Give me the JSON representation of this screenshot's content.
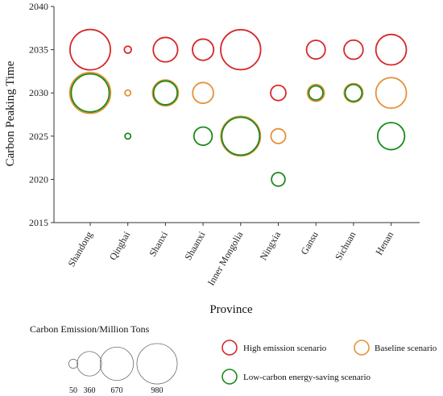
{
  "chart_data": {
    "type": "scatter",
    "subtype": "bubble",
    "ylabel": "Carbon Peaking Time",
    "xlabel": "Province",
    "ylim": [
      2015,
      2040
    ],
    "yticks": [
      2015,
      2020,
      2025,
      2030,
      2035,
      2040
    ],
    "categories": [
      "Shandong",
      "Qinghai",
      "Shanxi",
      "Shaanxi",
      "Inner Mongolia",
      "Ningxia",
      "Gansu",
      "Sichuan",
      "Henan"
    ],
    "series": [
      {
        "name": "High emission scenario",
        "color": "#d62728",
        "points": [
          {
            "category": "Shandong",
            "y": 2035,
            "size": 980
          },
          {
            "category": "Qinghai",
            "y": 2035,
            "size": 30
          },
          {
            "category": "Shanxi",
            "y": 2035,
            "size": 360
          },
          {
            "category": "Shaanxi",
            "y": 2035,
            "size": 270
          },
          {
            "category": "Inner Mongolia",
            "y": 2035,
            "size": 960
          },
          {
            "category": "Gansu",
            "y": 2035,
            "size": 210
          },
          {
            "category": "Sichuan",
            "y": 2035,
            "size": 220
          },
          {
            "category": "Henan",
            "y": 2035,
            "size": 560
          },
          {
            "category": "Ningxia",
            "y": 2030,
            "size": 140
          }
        ]
      },
      {
        "name": "Baseline scenario",
        "color": "#e69138",
        "points": [
          {
            "category": "Shandong",
            "y": 2030,
            "size": 1000
          },
          {
            "category": "Qinghai",
            "y": 2030,
            "size": 20
          },
          {
            "category": "Shanxi",
            "y": 2030,
            "size": 400
          },
          {
            "category": "Shaanxi",
            "y": 2030,
            "size": 260
          },
          {
            "category": "Inner Mongolia",
            "y": 2025,
            "size": 940
          },
          {
            "category": "Ningxia",
            "y": 2025,
            "size": 130
          },
          {
            "category": "Gansu",
            "y": 2030,
            "size": 170
          },
          {
            "category": "Sichuan",
            "y": 2030,
            "size": 210
          },
          {
            "category": "Henan",
            "y": 2030,
            "size": 560
          }
        ]
      },
      {
        "name": "Low-carbon energy-saving scenario",
        "color": "#1a8a1a",
        "points": [
          {
            "category": "Shandong",
            "y": 2030,
            "size": 870
          },
          {
            "category": "Qinghai",
            "y": 2025,
            "size": 20
          },
          {
            "category": "Shanxi",
            "y": 2030,
            "size": 340
          },
          {
            "category": "Shaanxi",
            "y": 2025,
            "size": 200
          },
          {
            "category": "Inner Mongolia",
            "y": 2025,
            "size": 860
          },
          {
            "category": "Ningxia",
            "y": 2020,
            "size": 110
          },
          {
            "category": "Gansu",
            "y": 2030,
            "size": 120
          },
          {
            "category": "Sichuan",
            "y": 2030,
            "size": 170
          },
          {
            "category": "Henan",
            "y": 2025,
            "size": 440
          }
        ]
      }
    ],
    "size_legend": {
      "title": "Carbon Emission/Million Tons",
      "values": [
        50,
        360,
        670,
        980
      ],
      "labels": [
        "50",
        "360",
        "670",
        "980"
      ]
    }
  }
}
